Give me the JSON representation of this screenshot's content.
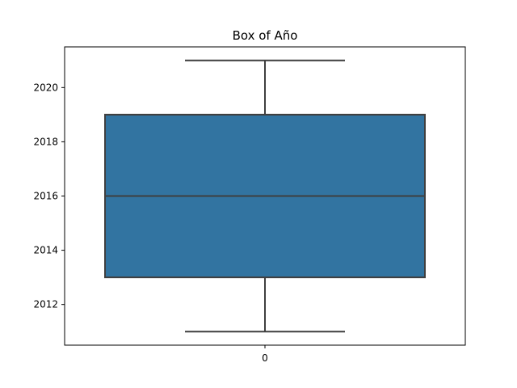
{
  "chart_data": {
    "type": "box",
    "title": "Box of Año",
    "xlabel": "",
    "ylabel": "",
    "categories": [
      "0"
    ],
    "ylim": [
      2010.5,
      2021.5
    ],
    "yticks": [
      2012,
      2014,
      2016,
      2018,
      2020
    ],
    "box": {
      "whisker_low": 2011,
      "q1": 2013,
      "median": 2016,
      "q3": 2019,
      "whisker_high": 2021
    },
    "box_color": "#3274a1",
    "line_color": "#3f3f3f",
    "grid": false,
    "legend": "none"
  }
}
